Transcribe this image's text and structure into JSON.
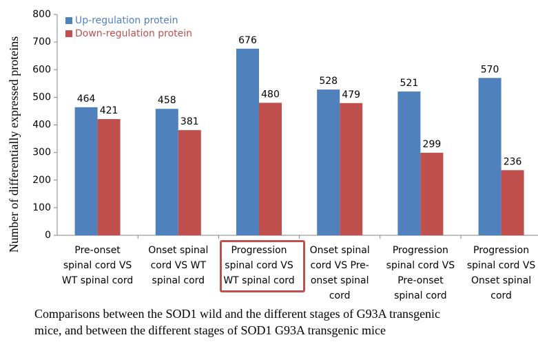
{
  "chart_data": {
    "type": "bar",
    "y_label": "Number of differentially expressed proteins",
    "categories": [
      "Pre-onset spinal cord VS WT spinal cord",
      "Onset spinal cord VS WT spinal cord",
      "Progression spinal cord VS WT spinal cord",
      "Onset spinal cord VS Pre-onset spinal cord",
      "Progression spinal cord VS Pre-onset spinal cord",
      "Progression spinal cord VS Onset spinal cord"
    ],
    "series": [
      {
        "name": "Up-regulation protein",
        "color": "#4f81bd",
        "values": [
          464,
          458,
          676,
          528,
          521,
          570
        ]
      },
      {
        "name": "Down-regulation protein",
        "color": "#c0504d",
        "values": [
          421,
          381,
          480,
          479,
          299,
          236
        ]
      }
    ],
    "ylim": [
      0,
      800
    ],
    "yticks": [
      0,
      100,
      200,
      300,
      400,
      500,
      600,
      700,
      800
    ],
    "legend": "upper left",
    "caption": [
      "Comparisons between the SOD1 wild and the different stages of G93A transgenic",
      "mice, and between the different stages of SOD1 G93A transgenic mice"
    ]
  }
}
